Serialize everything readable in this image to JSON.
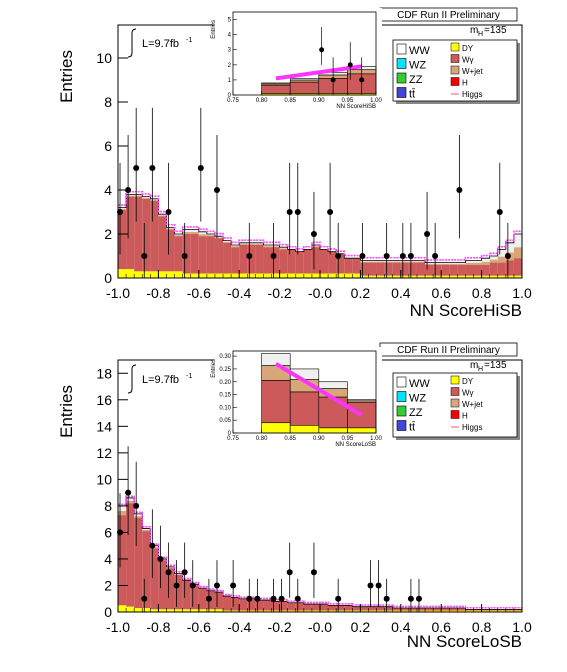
{
  "chart_data": [
    {
      "type": "bar",
      "title": "CDF Run II Preliminary",
      "lumi_label": "L=9.7fb",
      "lumi_sup": "-1",
      "mass_label": "m",
      "mass_sub": "H",
      "mass_value": "=135",
      "xlabel": "NN ScoreHiSB",
      "ylabel": "Entries",
      "xlim": [
        -1.0,
        1.0
      ],
      "ylim": [
        0,
        11.5
      ],
      "xticks": [
        "-1.0",
        "-0.8",
        "-0.6",
        "-0.4",
        "-0.2",
        "-0.0",
        "0.2",
        "0.4",
        "0.6",
        "0.8",
        "1.0"
      ],
      "yticks": [
        "0",
        "2",
        "4",
        "6",
        "8",
        "10"
      ],
      "legend": [
        "WW",
        "DY",
        "WZ",
        "Wγ",
        "ZZ",
        "W+jet",
        "tt̄",
        "H",
        "Higgs"
      ],
      "legend_colors": {
        "WW": "#ffffff",
        "DY": "#ffff00",
        "WZ": "#00e5ff",
        "Wγ": "#cc5a5a",
        "ZZ": "#33cc33",
        "W+jet": "#d9a67a",
        "tt̄": "#4444dd",
        "H": "#ff0000",
        "Higgs": "#ff5577"
      },
      "bin_width": 0.04,
      "bin_centers_from": -0.98,
      "dy": [
        0.4,
        0.4,
        0.3,
        0.3,
        0.3,
        0.3,
        0.3,
        0.3,
        0.2,
        0.2,
        0.2,
        0.2,
        0.2,
        0.2,
        0.2,
        0.2,
        0.2,
        0.2,
        0.2,
        0.2,
        0.2,
        0.2,
        0.2,
        0.2,
        0.2,
        0.2,
        0.2,
        0.2,
        0.2,
        0.2,
        0.1,
        0.1,
        0.1,
        0.1,
        0.1,
        0.1,
        0.1,
        0.1,
        0.1,
        0.1,
        0.1,
        0.1,
        0.1,
        0.1,
        0.1,
        0.1,
        0.1,
        0.1,
        0.1,
        0.1
      ],
      "wgamma": [
        2.7,
        3.3,
        3.4,
        3.3,
        3.2,
        2.5,
        1.9,
        1.6,
        1.8,
        1.8,
        1.7,
        1.7,
        1.6,
        1.4,
        1.2,
        1.3,
        1.3,
        1.3,
        1.2,
        1.2,
        1.1,
        1.1,
        1.0,
        1.1,
        1.2,
        1.1,
        1.0,
        0.9,
        0.7,
        0.7,
        0.6,
        0.6,
        0.6,
        0.6,
        0.6,
        0.6,
        0.6,
        0.6,
        0.5,
        0.5,
        0.5,
        0.5,
        0.5,
        0.5,
        0.5,
        0.5,
        0.6,
        0.6,
        0.7,
        0.8
      ],
      "top": [
        3.2,
        3.8,
        3.8,
        3.7,
        3.6,
        2.9,
        2.3,
        2.0,
        2.2,
        2.2,
        2.1,
        2.0,
        1.9,
        1.7,
        1.5,
        1.6,
        1.6,
        1.6,
        1.5,
        1.5,
        1.4,
        1.3,
        1.2,
        1.3,
        1.5,
        1.3,
        1.2,
        1.1,
        0.9,
        0.9,
        0.8,
        0.8,
        0.8,
        0.8,
        0.8,
        0.8,
        0.8,
        0.8,
        0.7,
        0.7,
        0.7,
        0.7,
        0.7,
        0.8,
        0.8,
        0.9,
        1.0,
        1.3,
        1.6,
        2.0
      ],
      "data_points": [
        [
          -0.99,
          3.0
        ],
        [
          -0.95,
          4.0
        ],
        [
          -0.91,
          5.0
        ],
        [
          -0.87,
          1.0
        ],
        [
          -0.83,
          5.0
        ],
        [
          -0.75,
          3.0
        ],
        [
          -0.67,
          1.0
        ],
        [
          -0.59,
          5.0
        ],
        [
          -0.51,
          4.0
        ],
        [
          -0.35,
          1.0
        ],
        [
          -0.23,
          1.0
        ],
        [
          -0.15,
          3.0
        ],
        [
          -0.11,
          3.0
        ],
        [
          -0.03,
          2.0
        ],
        [
          0.05,
          3.0
        ],
        [
          0.09,
          1.0
        ],
        [
          0.21,
          1.0
        ],
        [
          0.33,
          1.0
        ],
        [
          0.41,
          1.0
        ],
        [
          0.45,
          1.0
        ],
        [
          0.53,
          2.0
        ],
        [
          0.57,
          1.0
        ],
        [
          0.69,
          4.0
        ],
        [
          0.89,
          3.0
        ],
        [
          0.93,
          1.0
        ]
      ],
      "inset": {
        "xlabel": "NN ScoreHiSB",
        "ylabel": "Entries",
        "xlim": [
          0.75,
          1.0
        ],
        "ylim": [
          0,
          5.5
        ],
        "xticks": [
          "0.75",
          "0.80",
          "0.85",
          "0.90",
          "0.95",
          "1.00"
        ],
        "yticks": [
          "0",
          "1",
          "2",
          "3",
          "4",
          "5"
        ],
        "bin_edges": [
          0.8,
          0.85,
          0.9,
          0.95,
          1.0
        ],
        "top": [
          0.8,
          1.1,
          1.5,
          1.9
        ],
        "wgamma": [
          0.55,
          0.75,
          1.0,
          1.3
        ],
        "dy": [
          0.1,
          0.1,
          0.1,
          0.1
        ],
        "higgs_line": [
          [
            0.825,
            1.1
          ],
          [
            0.975,
            1.9
          ]
        ],
        "data_points": [
          [
            0.905,
            3.0
          ],
          [
            0.925,
            1.0
          ],
          [
            0.955,
            2.0
          ],
          [
            0.975,
            1.0
          ]
        ]
      }
    },
    {
      "type": "bar",
      "title": "CDF Run II Preliminary",
      "lumi_label": "L=9.7fb",
      "lumi_sup": "-1",
      "mass_label": "m",
      "mass_sub": "H",
      "mass_value": "=135",
      "xlabel": "NN ScoreLoSB",
      "ylabel": "Entries",
      "xlim": [
        -1.0,
        1.0
      ],
      "ylim": [
        0,
        19
      ],
      "xticks": [
        "-1.0",
        "-0.8",
        "-0.6",
        "-0.4",
        "-0.2",
        "-0.0",
        "0.2",
        "0.4",
        "0.6",
        "0.8",
        "1.0"
      ],
      "yticks": [
        "0",
        "2",
        "4",
        "6",
        "8",
        "10",
        "12",
        "14",
        "16",
        "18"
      ],
      "legend": [
        "WW",
        "DY",
        "WZ",
        "Wγ",
        "ZZ",
        "W+jet",
        "tt̄",
        "H",
        "Higgs"
      ],
      "legend_colors": {
        "WW": "#ffffff",
        "DY": "#ffff00",
        "WZ": "#00e5ff",
        "Wγ": "#cc5a5a",
        "ZZ": "#33cc33",
        "W+jet": "#d9a67a",
        "tt̄": "#4444dd",
        "H": "#ff0000",
        "Higgs": "#ff5577"
      },
      "bin_width": 0.04,
      "bin_centers_from": -0.98,
      "dy": [
        0.5,
        0.4,
        0.3,
        0.3,
        0.2,
        0.2,
        0.2,
        0.2,
        0.2,
        0.2,
        0.2,
        0.2,
        0.2,
        0.1,
        0.1,
        0.1,
        0.1,
        0.1,
        0.1,
        0.1,
        0.1,
        0.1,
        0.1,
        0.1,
        0.1,
        0.1,
        0.1,
        0.1,
        0.1,
        0.1,
        0.1,
        0.1,
        0.1,
        0.1,
        0.1,
        0.1,
        0.1,
        0.1,
        0.1,
        0.1,
        0.1,
        0.1,
        0.1,
        0.1,
        0.1,
        0.1,
        0.1,
        0.1,
        0.1,
        0.1
      ],
      "wgamma": [
        6.8,
        7.8,
        6.8,
        5.8,
        4.6,
        3.7,
        3.1,
        2.6,
        2.2,
        1.9,
        1.6,
        1.4,
        1.3,
        1.1,
        1.0,
        0.9,
        0.9,
        0.8,
        0.8,
        0.7,
        0.7,
        0.6,
        0.6,
        0.5,
        0.5,
        0.5,
        0.4,
        0.4,
        0.4,
        0.3,
        0.3,
        0.3,
        0.3,
        0.3,
        0.2,
        0.2,
        0.2,
        0.2,
        0.2,
        0.2,
        0.2,
        0.2,
        0.2,
        0.1,
        0.1,
        0.1,
        0.1,
        0.1,
        0.1,
        0.1
      ],
      "top": [
        8.0,
        8.6,
        7.4,
        6.3,
        5.0,
        4.0,
        3.4,
        2.9,
        2.4,
        2.1,
        1.8,
        1.6,
        1.4,
        1.2,
        1.1,
        1.0,
        1.0,
        0.9,
        0.9,
        0.8,
        0.8,
        0.7,
        0.7,
        0.6,
        0.6,
        0.6,
        0.5,
        0.5,
        0.5,
        0.4,
        0.4,
        0.4,
        0.4,
        0.4,
        0.3,
        0.3,
        0.3,
        0.3,
        0.3,
        0.3,
        0.3,
        0.3,
        0.3,
        0.2,
        0.2,
        0.2,
        0.2,
        0.2,
        0.2,
        0.2
      ],
      "data_points": [
        [
          -0.99,
          6.0
        ],
        [
          -0.95,
          9.0
        ],
        [
          -0.91,
          8.0
        ],
        [
          -0.87,
          1.0
        ],
        [
          -0.83,
          5.0
        ],
        [
          -0.79,
          4.0
        ],
        [
          -0.75,
          3.0
        ],
        [
          -0.71,
          2.0
        ],
        [
          -0.67,
          3.0
        ],
        [
          -0.63,
          2.0
        ],
        [
          -0.55,
          1.0
        ],
        [
          -0.51,
          2.0
        ],
        [
          -0.43,
          2.0
        ],
        [
          -0.35,
          1.0
        ],
        [
          -0.31,
          1.0
        ],
        [
          -0.23,
          1.0
        ],
        [
          -0.19,
          1.0
        ],
        [
          -0.15,
          3.0
        ],
        [
          -0.11,
          1.0
        ],
        [
          -0.03,
          3.0
        ],
        [
          0.09,
          1.0
        ],
        [
          0.25,
          2.0
        ],
        [
          0.29,
          2.0
        ],
        [
          0.33,
          1.0
        ],
        [
          0.45,
          1.0
        ],
        [
          0.49,
          1.0
        ]
      ],
      "inset": {
        "xlabel": "NN ScoreLoSB",
        "ylabel": "Entries",
        "xlim": [
          0.75,
          1.0
        ],
        "ylim": [
          0,
          0.32
        ],
        "xticks": [
          "0.75",
          "0.80",
          "0.85",
          "0.90",
          "0.95",
          "1.00"
        ],
        "yticks": [
          "0",
          "0.05",
          "0.10",
          "0.15",
          "0.20",
          "0.25",
          "0.30"
        ],
        "bin_edges": [
          0.8,
          0.85,
          0.9,
          0.95,
          1.0
        ],
        "top": [
          0.31,
          0.25,
          0.2,
          0.13
        ],
        "wgamma": [
          0.165,
          0.13,
          0.12,
          0.1
        ],
        "dy": [
          0.04,
          0.03,
          0.02,
          0.02
        ],
        "higgs_line": [
          [
            0.825,
            0.27
          ],
          [
            0.975,
            0.07
          ]
        ],
        "data_points": []
      }
    }
  ]
}
